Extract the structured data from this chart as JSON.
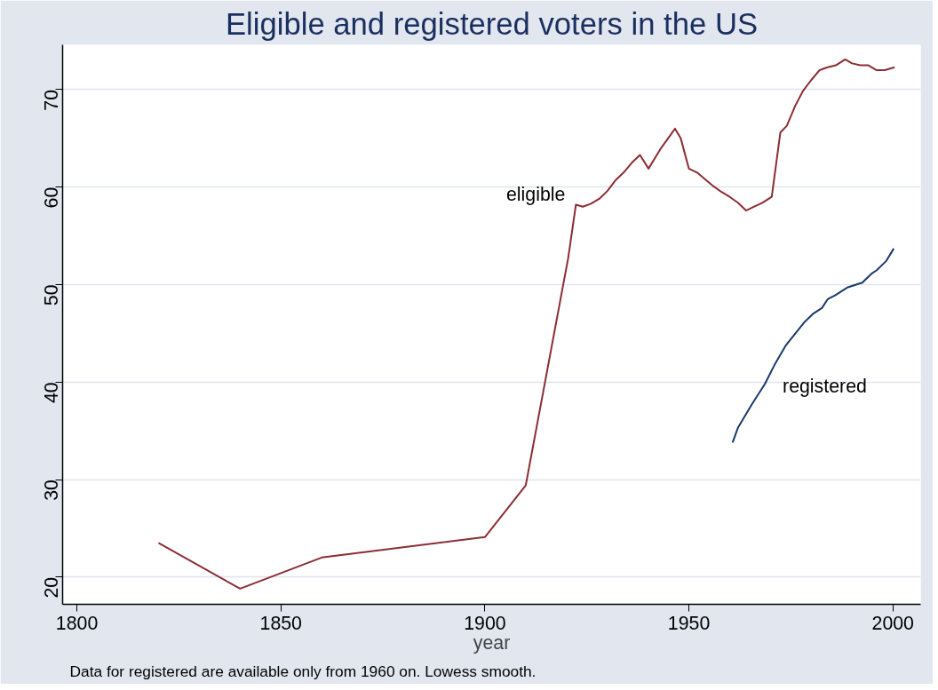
{
  "chart_data": {
    "type": "line",
    "title": "Eligible and registered voters in the US",
    "xlabel": "year",
    "xlim": [
      1796.5,
      2006.8
    ],
    "ylim": [
      17.2,
      74.6
    ],
    "xticks": [
      1800,
      1850,
      1900,
      1950,
      2000
    ],
    "yticks": [
      20,
      30,
      40,
      50,
      60,
      70
    ],
    "grid": "y",
    "marker": "none",
    "line_style": "solid",
    "series": [
      {
        "name": "eligible",
        "color": "#8b2d34",
        "x": [
          1820,
          1840,
          1860,
          1900,
          1910,
          1920.4,
          1922.3,
          1924,
          1926,
          1928,
          1930,
          1932,
          1934,
          1936,
          1938,
          1940.1,
          1943,
          1946.6,
          1948,
          1950,
          1952,
          1954,
          1956,
          1958,
          1960,
          1962,
          1964,
          1966,
          1968,
          1970.3,
          1972.4,
          1974,
          1976,
          1978,
          1980,
          1982,
          1984,
          1986,
          1988.3,
          1990,
          1992,
          1994,
          1996,
          1998,
          2000.4
        ],
        "values": [
          23.5,
          18.8,
          22.0,
          24.1,
          29.4,
          52.7,
          58.2,
          58.0,
          58.3,
          58.8,
          59.6,
          60.7,
          61.5,
          62.5,
          63.3,
          61.9,
          63.9,
          66.0,
          65.0,
          61.9,
          61.5,
          60.8,
          60.1,
          59.5,
          59.0,
          58.4,
          57.6,
          58.0,
          58.4,
          59.0,
          65.6,
          66.3,
          68.3,
          69.9,
          71.0,
          72.0,
          72.3,
          72.5,
          73.1,
          72.7,
          72.5,
          72.5,
          72.0,
          72.0,
          72.3
        ]
      },
      {
        "name": "registered",
        "color": "#1a3a6c",
        "x": [
          1960.7,
          1962,
          1965.4,
          1968.6,
          1970.9,
          1973.8,
          1978.2,
          1980.4,
          1982.6,
          1984.0,
          1985.8,
          1988.8,
          1992.5,
          1994.7,
          1996.1,
          1998.3,
          2000.2
        ],
        "values": [
          33.8,
          35.3,
          37.7,
          39.8,
          41.7,
          43.8,
          46.1,
          47.0,
          47.6,
          48.5,
          48.9,
          49.7,
          50.2,
          51.1,
          51.5,
          52.4,
          53.7
        ]
      }
    ],
    "annotations": [
      "Data for registered are available only from 1960 on. Lowess smooth."
    ]
  }
}
